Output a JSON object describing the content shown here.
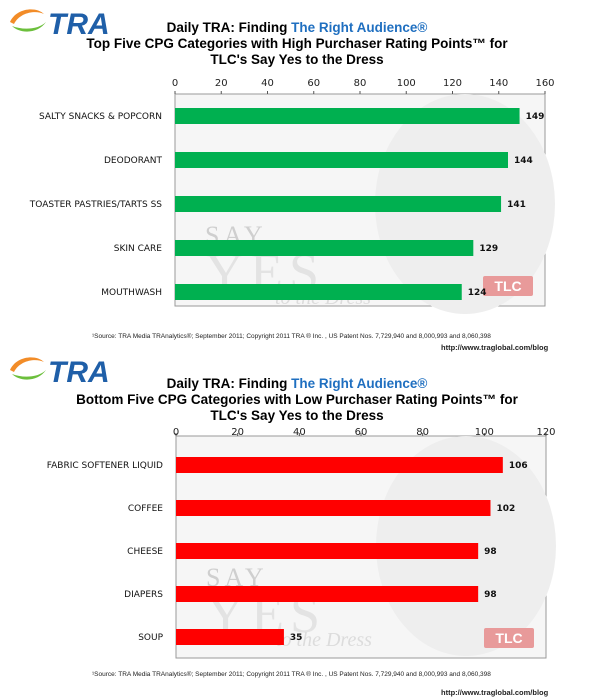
{
  "logo": {
    "text": "TRA"
  },
  "watermark": {
    "say": "SAY",
    "yes": "YES",
    "dress": "to the Dress",
    "network": "TLC"
  },
  "chart_data": [
    {
      "type": "bar",
      "orientation": "horizontal",
      "title_line1_prefix": "Daily TRA: Finding ",
      "title_line1_highlight": "The Right Audience",
      "title_line1_mark": "®",
      "title_line2": "Top Five CPG Categories with High Purchaser Rating Points™ for",
      "title_line3": "TLC's Say Yes to the Dress",
      "xlim": [
        0,
        160
      ],
      "ticks": [
        0,
        20,
        40,
        60,
        80,
        100,
        120,
        140,
        160
      ],
      "categories": [
        "SALTY SNACKS & POPCORN",
        "DEODORANT",
        "TOASTER PASTRIES/TARTS SS",
        "SKIN CARE",
        "MOUTHWASH"
      ],
      "values": [
        149,
        144,
        141,
        129,
        124
      ],
      "bar_color": "#00b050",
      "source": "¹Source: TRA Media TRAnalytics®; September 2011; Copyright 2011 TRA ® Inc. , US Patent Nos. 7,729,940 and 8,000,993 and 8,060,398",
      "url": "http://www.traglobal.com/blog"
    },
    {
      "type": "bar",
      "orientation": "horizontal",
      "title_line1_prefix": "Daily TRA: Finding ",
      "title_line1_highlight": "The Right Audience",
      "title_line1_mark": "®",
      "title_line2": "Bottom Five CPG Categories with Low Purchaser Rating Points™ for",
      "title_line3": "TLC's Say Yes to the Dress",
      "xlim": [
        0,
        120
      ],
      "ticks": [
        0,
        20,
        40,
        60,
        80,
        100,
        120
      ],
      "categories": [
        "FABRIC SOFTENER LIQUID",
        "COFFEE",
        "CHEESE",
        "DIAPERS",
        "SOUP"
      ],
      "values": [
        106,
        102,
        98,
        98,
        35
      ],
      "bar_color": "#ff0000",
      "source": "¹Source: TRA Media TRAnalytics®; September 2011; Copyright 2011 TRA ® Inc. , US Patent Nos. 7,729,940 and 8,000,993 and 8,060,398",
      "url": "http://www.traglobal.com/blog"
    }
  ]
}
